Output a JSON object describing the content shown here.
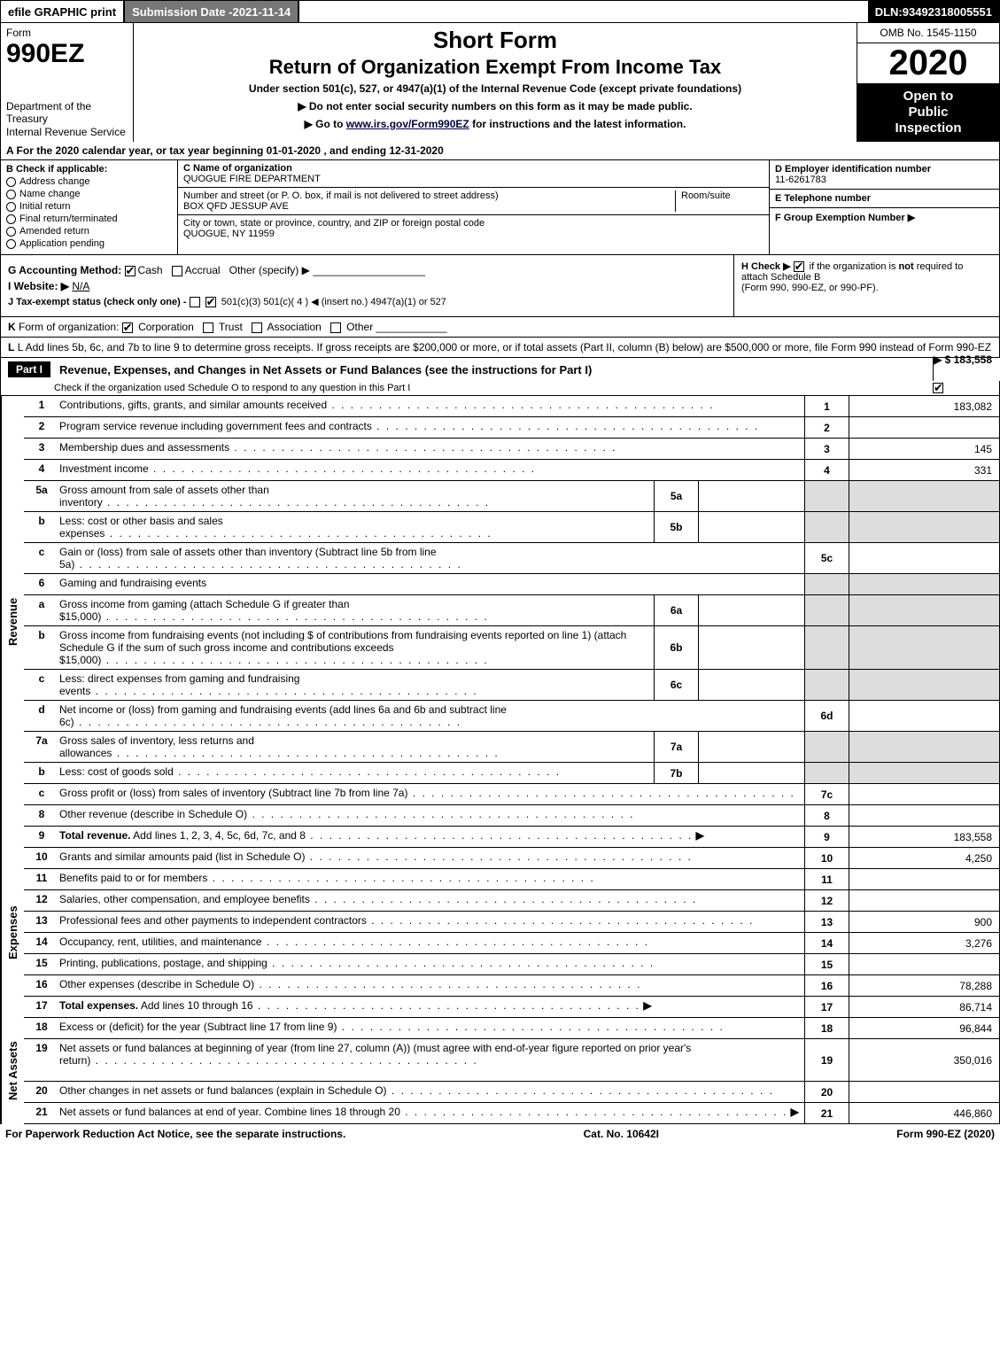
{
  "topbar": {
    "print": "efile GRAPHIC print",
    "subdate_label": "Submission Date - ",
    "subdate_value": "2021-11-14",
    "dln_label": "DLN: ",
    "dln_value": "93492318005551"
  },
  "header": {
    "form_label": "Form",
    "form_no": "990EZ",
    "dept1": "Department of the Treasury",
    "dept2": "Internal Revenue Service",
    "short_form": "Short Form",
    "title_main": "Return of Organization Exempt From Income Tax",
    "subtitle": "Under section 501(c), 527, or 4947(a)(1) of the Internal Revenue Code (except private foundations)",
    "arrow1": "▶ Do not enter social security numbers on this form as it may be made public.",
    "arrow2_pre": "▶ Go to ",
    "arrow2_link": "www.irs.gov/Form990EZ",
    "arrow2_post": " for instructions and the latest information.",
    "omb": "OMB No. 1545-1150",
    "year": "2020",
    "open1": "Open to",
    "open2": "Public",
    "open3": "Inspection"
  },
  "lineA": "A For the 2020 calendar year, or tax year beginning 01-01-2020 , and ending 12-31-2020",
  "colB": {
    "title": "B Check if applicable:",
    "opts": [
      "Address change",
      "Name change",
      "Initial return",
      "Final return/terminated",
      "Amended return",
      "Application pending"
    ]
  },
  "colC": {
    "c_label": "C Name of organization",
    "c_val": "QUOGUE FIRE DEPARTMENT",
    "addr_label": "Number and street (or P. O. box, if mail is not delivered to street address)",
    "room_label": "Room/suite",
    "addr_val": "BOX QFD JESSUP AVE",
    "city_label": "City or town, state or province, country, and ZIP or foreign postal code",
    "city_val": "QUOGUE, NY  11959"
  },
  "colD": {
    "d_label": "D Employer identification number",
    "d_val": "11-6261783",
    "e_label": "E Telephone number",
    "e_val": "",
    "f_label": "F Group Exemption Number  ▶",
    "f_val": ""
  },
  "lineG": {
    "label": "G Accounting Method:",
    "cash": "Cash",
    "accrual": "Accrual",
    "other": "Other (specify) ▶",
    "website_label": "I Website: ▶",
    "website_val": "N/A",
    "j_label": "J Tax-exempt status (check only one) - ",
    "j_opts": "501(c)(3)   501(c)( 4 ) ◀ (insert no.)   4947(a)(1) or   527"
  },
  "lineH": {
    "text1": "H Check ▶ ",
    "text2": " if the organization is ",
    "not": "not",
    "text3": " required to attach Schedule B",
    "text4": "(Form 990, 990-EZ, or 990-PF)."
  },
  "lineK": "K Form of organization:   Corporation   Trust   Association   Other",
  "lineL": {
    "text": "L Add lines 5b, 6c, and 7b to line 9 to determine gross receipts. If gross receipts are $200,000 or more, or if total assets (Part II, column (B) below) are $500,000 or more, file Form 990 instead of Form 990-EZ",
    "amt_label": "▶ $ ",
    "amt": "183,558"
  },
  "part1": {
    "tag": "Part I",
    "title": "Revenue, Expenses, and Changes in Net Assets or Fund Balances (see the instructions for Part I)",
    "sub": "Check if the organization used Schedule O to respond to any question in this Part I",
    "checked": true
  },
  "sections": {
    "revenue_label": "Revenue",
    "expenses_label": "Expenses",
    "netassets_label": "Net Assets"
  },
  "rows": [
    {
      "sec": "rev",
      "n": "1",
      "d": "Contributions, gifts, grants, and similar amounts received",
      "num": "1",
      "val": "183,082"
    },
    {
      "sec": "rev",
      "n": "2",
      "d": "Program service revenue including government fees and contracts",
      "num": "2",
      "val": ""
    },
    {
      "sec": "rev",
      "n": "3",
      "d": "Membership dues and assessments",
      "num": "3",
      "val": "145"
    },
    {
      "sec": "rev",
      "n": "4",
      "d": "Investment income",
      "num": "4",
      "val": "331"
    },
    {
      "sec": "rev",
      "n": "5a",
      "d": "Gross amount from sale of assets other than inventory",
      "sub": "5a",
      "subval": "",
      "shade": true
    },
    {
      "sec": "rev",
      "n": "b",
      "d": "Less: cost or other basis and sales expenses",
      "sub": "5b",
      "subval": "",
      "shade": true
    },
    {
      "sec": "rev",
      "n": "c",
      "d": "Gain or (loss) from sale of assets other than inventory (Subtract line 5b from line 5a)",
      "num": "5c",
      "val": ""
    },
    {
      "sec": "rev",
      "n": "6",
      "d": "Gaming and fundraising events",
      "plain": true,
      "shade": true
    },
    {
      "sec": "rev",
      "n": "a",
      "d": "Gross income from gaming (attach Schedule G if greater than $15,000)",
      "sub": "6a",
      "subval": "",
      "shade": true
    },
    {
      "sec": "rev",
      "n": "b",
      "d": "Gross income from fundraising events (not including $                of contributions from fundraising events reported on line 1) (attach Schedule G if the sum of such gross income and contributions exceeds $15,000)",
      "sub": "6b",
      "subval": "",
      "shade": true,
      "tall": true
    },
    {
      "sec": "rev",
      "n": "c",
      "d": "Less: direct expenses from gaming and fundraising events",
      "sub": "6c",
      "subval": "",
      "shade": true
    },
    {
      "sec": "rev",
      "n": "d",
      "d": "Net income or (loss) from gaming and fundraising events (add lines 6a and 6b and subtract line 6c)",
      "num": "6d",
      "val": ""
    },
    {
      "sec": "rev",
      "n": "7a",
      "d": "Gross sales of inventory, less returns and allowances",
      "sub": "7a",
      "subval": "",
      "shade": true
    },
    {
      "sec": "rev",
      "n": "b",
      "d": "Less: cost of goods sold",
      "sub": "7b",
      "subval": "",
      "shade": true
    },
    {
      "sec": "rev",
      "n": "c",
      "d": "Gross profit or (loss) from sales of inventory (Subtract line 7b from line 7a)",
      "num": "7c",
      "val": ""
    },
    {
      "sec": "rev",
      "n": "8",
      "d": "Other revenue (describe in Schedule O)",
      "num": "8",
      "val": ""
    },
    {
      "sec": "rev",
      "n": "9",
      "d": "Total revenue. Add lines 1, 2, 3, 4, 5c, 6d, 7c, and 8",
      "num": "9",
      "val": "183,558",
      "bold": true,
      "arrow": true
    },
    {
      "sec": "exp",
      "n": "10",
      "d": "Grants and similar amounts paid (list in Schedule O)",
      "num": "10",
      "val": "4,250"
    },
    {
      "sec": "exp",
      "n": "11",
      "d": "Benefits paid to or for members",
      "num": "11",
      "val": ""
    },
    {
      "sec": "exp",
      "n": "12",
      "d": "Salaries, other compensation, and employee benefits",
      "num": "12",
      "val": ""
    },
    {
      "sec": "exp",
      "n": "13",
      "d": "Professional fees and other payments to independent contractors",
      "num": "13",
      "val": "900"
    },
    {
      "sec": "exp",
      "n": "14",
      "d": "Occupancy, rent, utilities, and maintenance",
      "num": "14",
      "val": "3,276"
    },
    {
      "sec": "exp",
      "n": "15",
      "d": "Printing, publications, postage, and shipping",
      "num": "15",
      "val": ""
    },
    {
      "sec": "exp",
      "n": "16",
      "d": "Other expenses (describe in Schedule O)",
      "num": "16",
      "val": "78,288"
    },
    {
      "sec": "exp",
      "n": "17",
      "d": "Total expenses. Add lines 10 through 16",
      "num": "17",
      "val": "86,714",
      "bold": true,
      "arrow": true
    },
    {
      "sec": "net",
      "n": "18",
      "d": "Excess or (deficit) for the year (Subtract line 17 from line 9)",
      "num": "18",
      "val": "96,844"
    },
    {
      "sec": "net",
      "n": "19",
      "d": "Net assets or fund balances at beginning of year (from line 27, column (A)) (must agree with end-of-year figure reported on prior year's return)",
      "num": "19",
      "val": "350,016",
      "tall": true
    },
    {
      "sec": "net",
      "n": "20",
      "d": "Other changes in net assets or fund balances (explain in Schedule O)",
      "num": "20",
      "val": ""
    },
    {
      "sec": "net",
      "n": "21",
      "d": "Net assets or fund balances at end of year. Combine lines 18 through 20",
      "num": "21",
      "val": "446,860",
      "arrow": true
    }
  ],
  "footer": {
    "left": "For Paperwork Reduction Act Notice, see the separate instructions.",
    "center": "Cat. No. 10642I",
    "right": "Form 990-EZ (2020)"
  },
  "colors": {
    "black": "#000000",
    "white": "#ffffff",
    "grey_bar": "#777777",
    "shade": "#dddddd",
    "link": "#000044"
  }
}
